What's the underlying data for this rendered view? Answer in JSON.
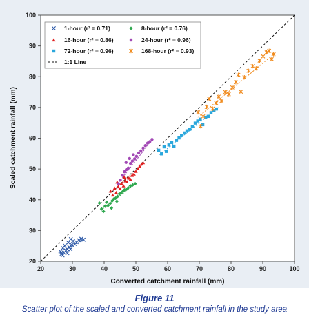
{
  "chart_data": {
    "type": "scatter",
    "xlabel": "Converted catchment rainfall (mm)",
    "ylabel": "Scaled catchment rainfall (mm)",
    "xlim": [
      20,
      100
    ],
    "ylim": [
      20,
      100
    ],
    "xticks": [
      "20",
      "30",
      "40",
      "50",
      "60",
      "70",
      "80",
      "90",
      "100"
    ],
    "yticks": [
      "20",
      "30",
      "40",
      "50",
      "60",
      "70",
      "80",
      "90",
      "100"
    ],
    "grid": false,
    "legend_position": "top-left",
    "series": [
      {
        "name": "1-hour (r² = 0.71)",
        "color": "#2e5aa8",
        "marker": "x",
        "points": [
          [
            26.2,
            23.2
          ],
          [
            26.6,
            22.4
          ],
          [
            27.0,
            24.3
          ],
          [
            27.3,
            22.8
          ],
          [
            27.6,
            25.1
          ],
          [
            28.0,
            23.5
          ],
          [
            28.3,
            24.0
          ],
          [
            28.7,
            26.1
          ],
          [
            29.0,
            24.6
          ],
          [
            29.4,
            23.9
          ],
          [
            29.8,
            25.3
          ],
          [
            30.2,
            26.6
          ],
          [
            30.7,
            25.6
          ],
          [
            31.3,
            26.2
          ],
          [
            32.0,
            26.9
          ],
          [
            32.8,
            27.3
          ],
          [
            33.5,
            27.0
          ],
          [
            28.4,
            22.6
          ],
          [
            29.5,
            27.2
          ],
          [
            26.9,
            21.9
          ]
        ],
        "trend": [
          [
            26,
            22.5
          ],
          [
            34,
            27.5
          ]
        ]
      },
      {
        "name": "8-hour (r² = 0.76)",
        "color": "#2fa84f",
        "marker": "diamond",
        "points": [
          [
            38.5,
            38.9
          ],
          [
            39.2,
            37.0
          ],
          [
            39.8,
            36.2
          ],
          [
            40.3,
            37.9
          ],
          [
            40.8,
            39.2
          ],
          [
            41.2,
            38.1
          ],
          [
            41.9,
            38.8
          ],
          [
            42.5,
            39.6
          ],
          [
            43.0,
            40.2
          ],
          [
            43.6,
            40.5
          ],
          [
            44.2,
            41.1
          ],
          [
            44.8,
            41.9
          ],
          [
            45.3,
            42.1
          ],
          [
            45.9,
            42.7
          ],
          [
            46.4,
            43.2
          ],
          [
            47.0,
            43.4
          ],
          [
            47.6,
            43.9
          ],
          [
            48.3,
            44.5
          ],
          [
            49.0,
            44.8
          ],
          [
            49.8,
            45.2
          ],
          [
            42.3,
            37.3
          ],
          [
            44.0,
            39.5
          ]
        ],
        "trend": [
          [
            39.5,
            37.0
          ],
          [
            50,
            45.2
          ]
        ]
      },
      {
        "name": "16-hour (r² = 0.86)",
        "color": "#e02020",
        "marker": "triangle",
        "points": [
          [
            42.0,
            42.8
          ],
          [
            42.7,
            41.5
          ],
          [
            43.3,
            43.7
          ],
          [
            43.8,
            42.3
          ],
          [
            44.4,
            44.2
          ],
          [
            45.0,
            43.6
          ],
          [
            45.5,
            45.2
          ],
          [
            46.1,
            44.5
          ],
          [
            46.7,
            46.1
          ],
          [
            47.2,
            45.8
          ],
          [
            47.8,
            47.0
          ],
          [
            48.3,
            46.6
          ],
          [
            48.8,
            47.9
          ],
          [
            49.4,
            48.3
          ],
          [
            50.0,
            49.2
          ],
          [
            50.6,
            50.1
          ],
          [
            51.2,
            50.9
          ],
          [
            51.8,
            51.6
          ],
          [
            52.3,
            52.0
          ],
          [
            44.1,
            45.7
          ],
          [
            46.3,
            47.3
          ]
        ],
        "trend": [
          [
            42,
            42.3
          ],
          [
            52.5,
            51.8
          ]
        ]
      },
      {
        "name": "24-hour (r² = 0.96)",
        "color": "#a248b5",
        "marker": "circle",
        "points": [
          [
            44.5,
            45.2
          ],
          [
            45.1,
            46.4
          ],
          [
            45.8,
            47.9
          ],
          [
            46.4,
            49.1
          ],
          [
            47.0,
            49.8
          ],
          [
            47.6,
            50.3
          ],
          [
            48.3,
            51.8
          ],
          [
            48.9,
            52.6
          ],
          [
            49.6,
            53.3
          ],
          [
            50.2,
            54.1
          ],
          [
            50.9,
            55.2
          ],
          [
            51.6,
            55.9
          ],
          [
            52.3,
            56.8
          ],
          [
            53.0,
            57.6
          ],
          [
            53.7,
            58.4
          ],
          [
            54.4,
            58.9
          ],
          [
            55.1,
            59.6
          ],
          [
            46.9,
            52.1
          ],
          [
            48.0,
            53.4
          ],
          [
            49.2,
            54.6
          ]
        ],
        "trend": [
          [
            44.5,
            45.5
          ],
          [
            55.3,
            59.7
          ]
        ]
      },
      {
        "name": "72-hour (r² = 0.96)",
        "color": "#2aa7dc",
        "marker": "square",
        "points": [
          [
            57.2,
            56.1
          ],
          [
            58.1,
            54.9
          ],
          [
            58.9,
            57.2
          ],
          [
            59.6,
            55.7
          ],
          [
            60.4,
            57.8
          ],
          [
            61.3,
            58.6
          ],
          [
            62.0,
            57.4
          ],
          [
            62.8,
            59.3
          ],
          [
            63.6,
            60.1
          ],
          [
            64.4,
            60.9
          ],
          [
            65.3,
            61.7
          ],
          [
            66.1,
            62.4
          ],
          [
            67.0,
            62.9
          ],
          [
            67.8,
            63.8
          ],
          [
            68.7,
            64.9
          ],
          [
            69.5,
            65.6
          ],
          [
            70.3,
            66.2
          ],
          [
            71.1,
            64.4
          ],
          [
            72.0,
            66.8
          ],
          [
            72.8,
            67.1
          ],
          [
            73.7,
            68.3
          ],
          [
            74.6,
            69.0
          ],
          [
            75.4,
            69.5
          ]
        ],
        "trend": [
          [
            57.5,
            54.6
          ],
          [
            76,
            70.0
          ]
        ]
      },
      {
        "name": "168-hour (r² = 0.93)",
        "color": "#f08a1c",
        "marker": "asterisk",
        "points": [
          [
            69.6,
            68.4
          ],
          [
            70.4,
            63.9
          ],
          [
            71.2,
            67.1
          ],
          [
            72.3,
            70.2
          ],
          [
            73.1,
            72.8
          ],
          [
            74.2,
            69.6
          ],
          [
            75.3,
            71.4
          ],
          [
            76.1,
            73.5
          ],
          [
            77.0,
            72.1
          ],
          [
            78.2,
            75.0
          ],
          [
            79.3,
            74.3
          ],
          [
            80.4,
            76.5
          ],
          [
            81.5,
            78.2
          ],
          [
            82.3,
            80.6
          ],
          [
            83.1,
            75.1
          ],
          [
            84.2,
            79.8
          ],
          [
            85.5,
            81.9
          ],
          [
            86.8,
            83.4
          ],
          [
            87.9,
            82.7
          ],
          [
            89.0,
            85.2
          ],
          [
            90.1,
            86.6
          ],
          [
            91.2,
            87.9
          ],
          [
            92.0,
            88.4
          ],
          [
            92.8,
            85.7
          ],
          [
            93.4,
            87.3
          ]
        ],
        "trend": [
          [
            69.5,
            66.8
          ],
          [
            94,
            87.8
          ]
        ]
      }
    ],
    "reference_line": {
      "name": "1:1 Line",
      "from": [
        20,
        20
      ],
      "to": [
        100,
        100
      ]
    }
  },
  "figure": {
    "title": "Figure 11",
    "caption": "Scatter plot of the scaled and converted catchment rainfall in the study area"
  },
  "colors": {
    "frame_bg": "#e9eef4",
    "caption_text": "#1f3a93"
  }
}
